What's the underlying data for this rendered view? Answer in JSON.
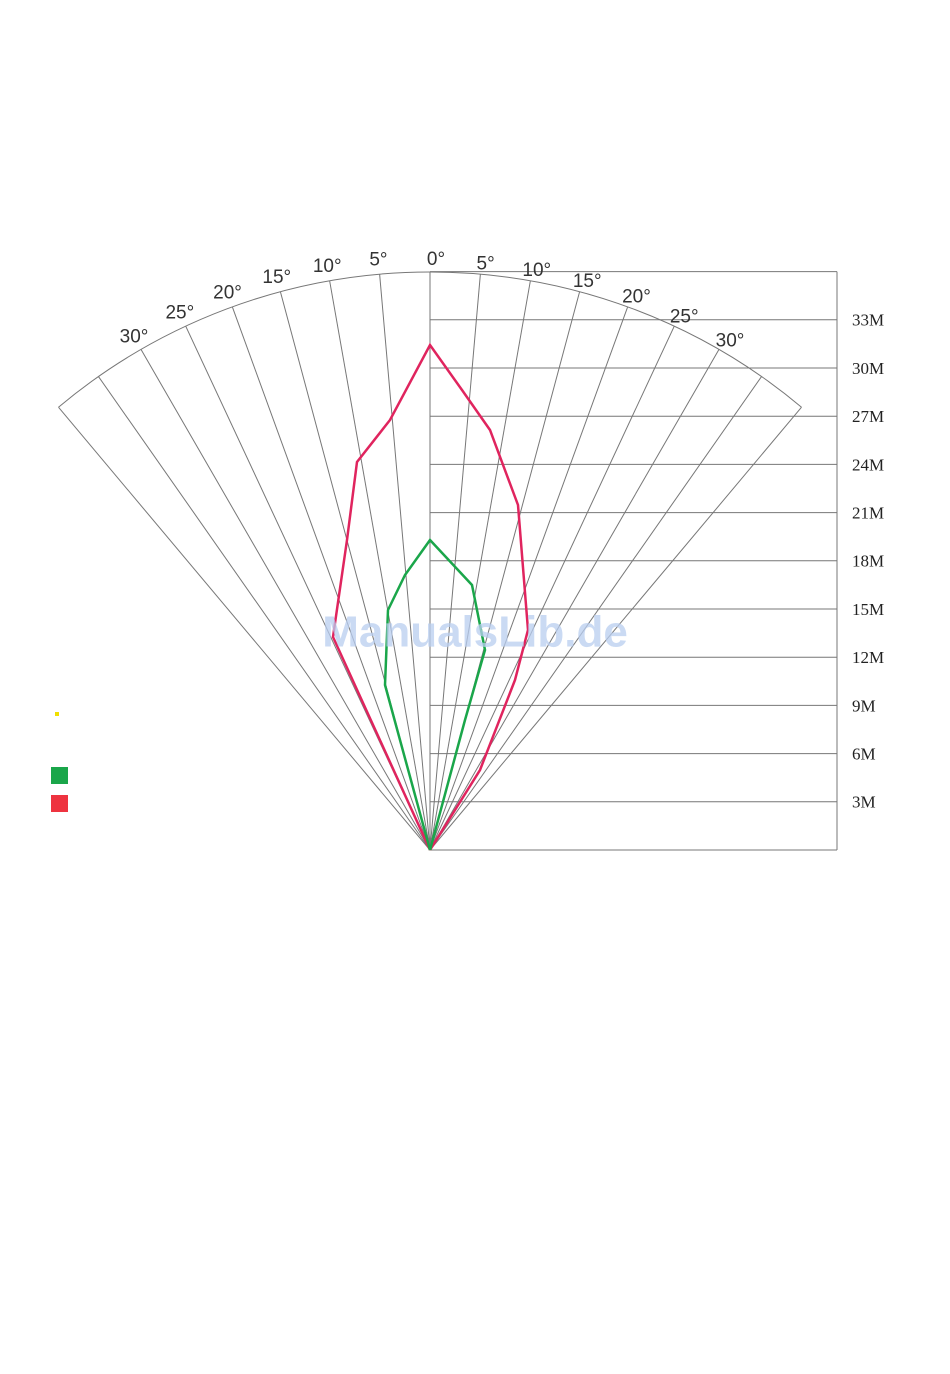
{
  "center_label": "0°",
  "angle_labels_left": [
    "5°",
    "10°",
    "15°",
    "20°",
    "25°",
    "30°"
  ],
  "angle_labels_right": [
    "5°",
    "10°",
    "15°",
    "20°",
    "25°",
    "30°"
  ],
  "range_labels": [
    "3M",
    "6M",
    "9M",
    "12M",
    "15M",
    "18M",
    "21M",
    "24M",
    "27M",
    "30M",
    "33M"
  ],
  "watermark": "ManualsLib.de"
}
